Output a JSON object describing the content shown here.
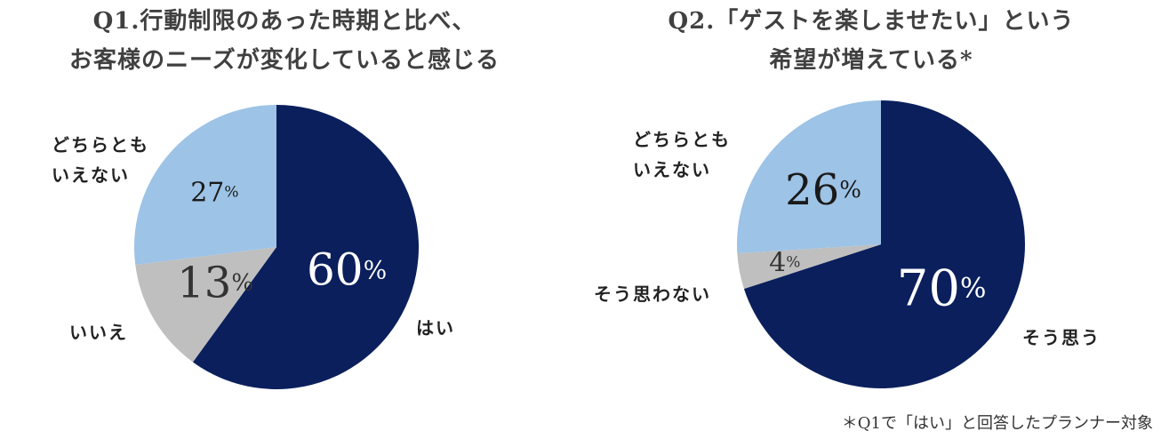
{
  "chart_data": [
    {
      "type": "pie",
      "title": [
        "Q1.行動制限のあった時期と比べ、",
        "お客様のニーズが変化していると感じる"
      ],
      "slices": [
        {
          "label": "はい",
          "value": 60,
          "color": "#0a1f5c",
          "text_color": "#ffffff"
        },
        {
          "label": "いいえ",
          "value": 13,
          "color": "#bfbfbf",
          "text_color": "#333333"
        },
        {
          "label": "どちらとも\nいえない",
          "value": 27,
          "color": "#9dc3e6",
          "text_color": "#1a1a1a"
        }
      ],
      "unit": "%"
    },
    {
      "type": "pie",
      "title": [
        "Q2.「ゲストを楽しませたい」という",
        "希望が増えている*"
      ],
      "slices": [
        {
          "label": "そう思う",
          "value": 70,
          "color": "#0a1f5c",
          "text_color": "#ffffff"
        },
        {
          "label": "そう思わない",
          "value": 4,
          "color": "#bfbfbf",
          "text_color": "#333333"
        },
        {
          "label": "どちらとも\nいえない",
          "value": 26,
          "color": "#9dc3e6",
          "text_color": "#1a1a1a"
        }
      ],
      "unit": "%"
    }
  ],
  "note": "＊Q1で「はい」と回答したプランナー対象"
}
